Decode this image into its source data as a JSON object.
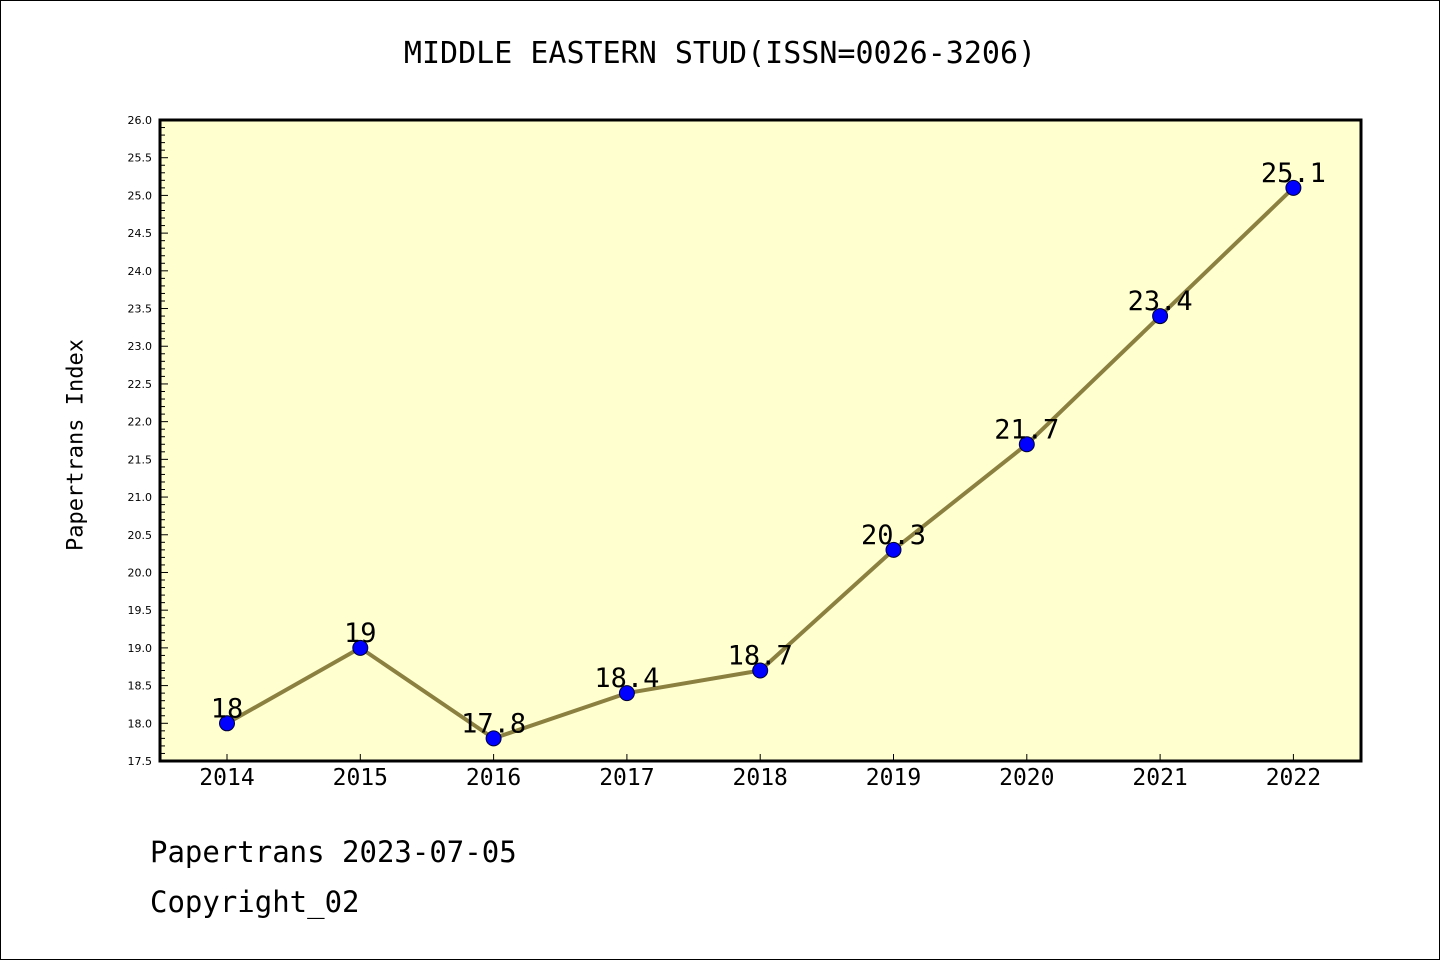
{
  "chart_data": {
    "type": "line",
    "title": "MIDDLE EASTERN STUD(ISSN=0026-3206)",
    "xlabel": "",
    "ylabel": "Papertrans Index",
    "categories": [
      "2014",
      "2015",
      "2016",
      "2017",
      "2018",
      "2019",
      "2020",
      "2021",
      "2022"
    ],
    "series": [
      {
        "values": [
          18,
          19,
          17.8,
          18.4,
          18.7,
          20.3,
          21.7,
          23.4,
          25.1
        ],
        "data_labels": [
          "18",
          "19",
          "17.8",
          "18.4",
          "18.7",
          "20.3",
          "21.7",
          "23.4",
          "25.1"
        ]
      }
    ],
    "ylim": [
      17.5,
      26.0
    ],
    "yticks": [
      "17.5",
      "18.0",
      "18.5",
      "19.0",
      "19.5",
      "20.0",
      "20.5",
      "21.0",
      "21.5",
      "22.0",
      "22.5",
      "23.0",
      "23.5",
      "24.0",
      "24.5",
      "25.0",
      "25.5",
      "26.0"
    ],
    "grid": false,
    "colors": {
      "plot_background": "#ffffd0",
      "line": "#8b8040",
      "marker": "#0000ff",
      "axis": "#000000"
    }
  },
  "footer": {
    "line1": "Papertrans 2023-07-05",
    "line2": "Copyright_02"
  }
}
